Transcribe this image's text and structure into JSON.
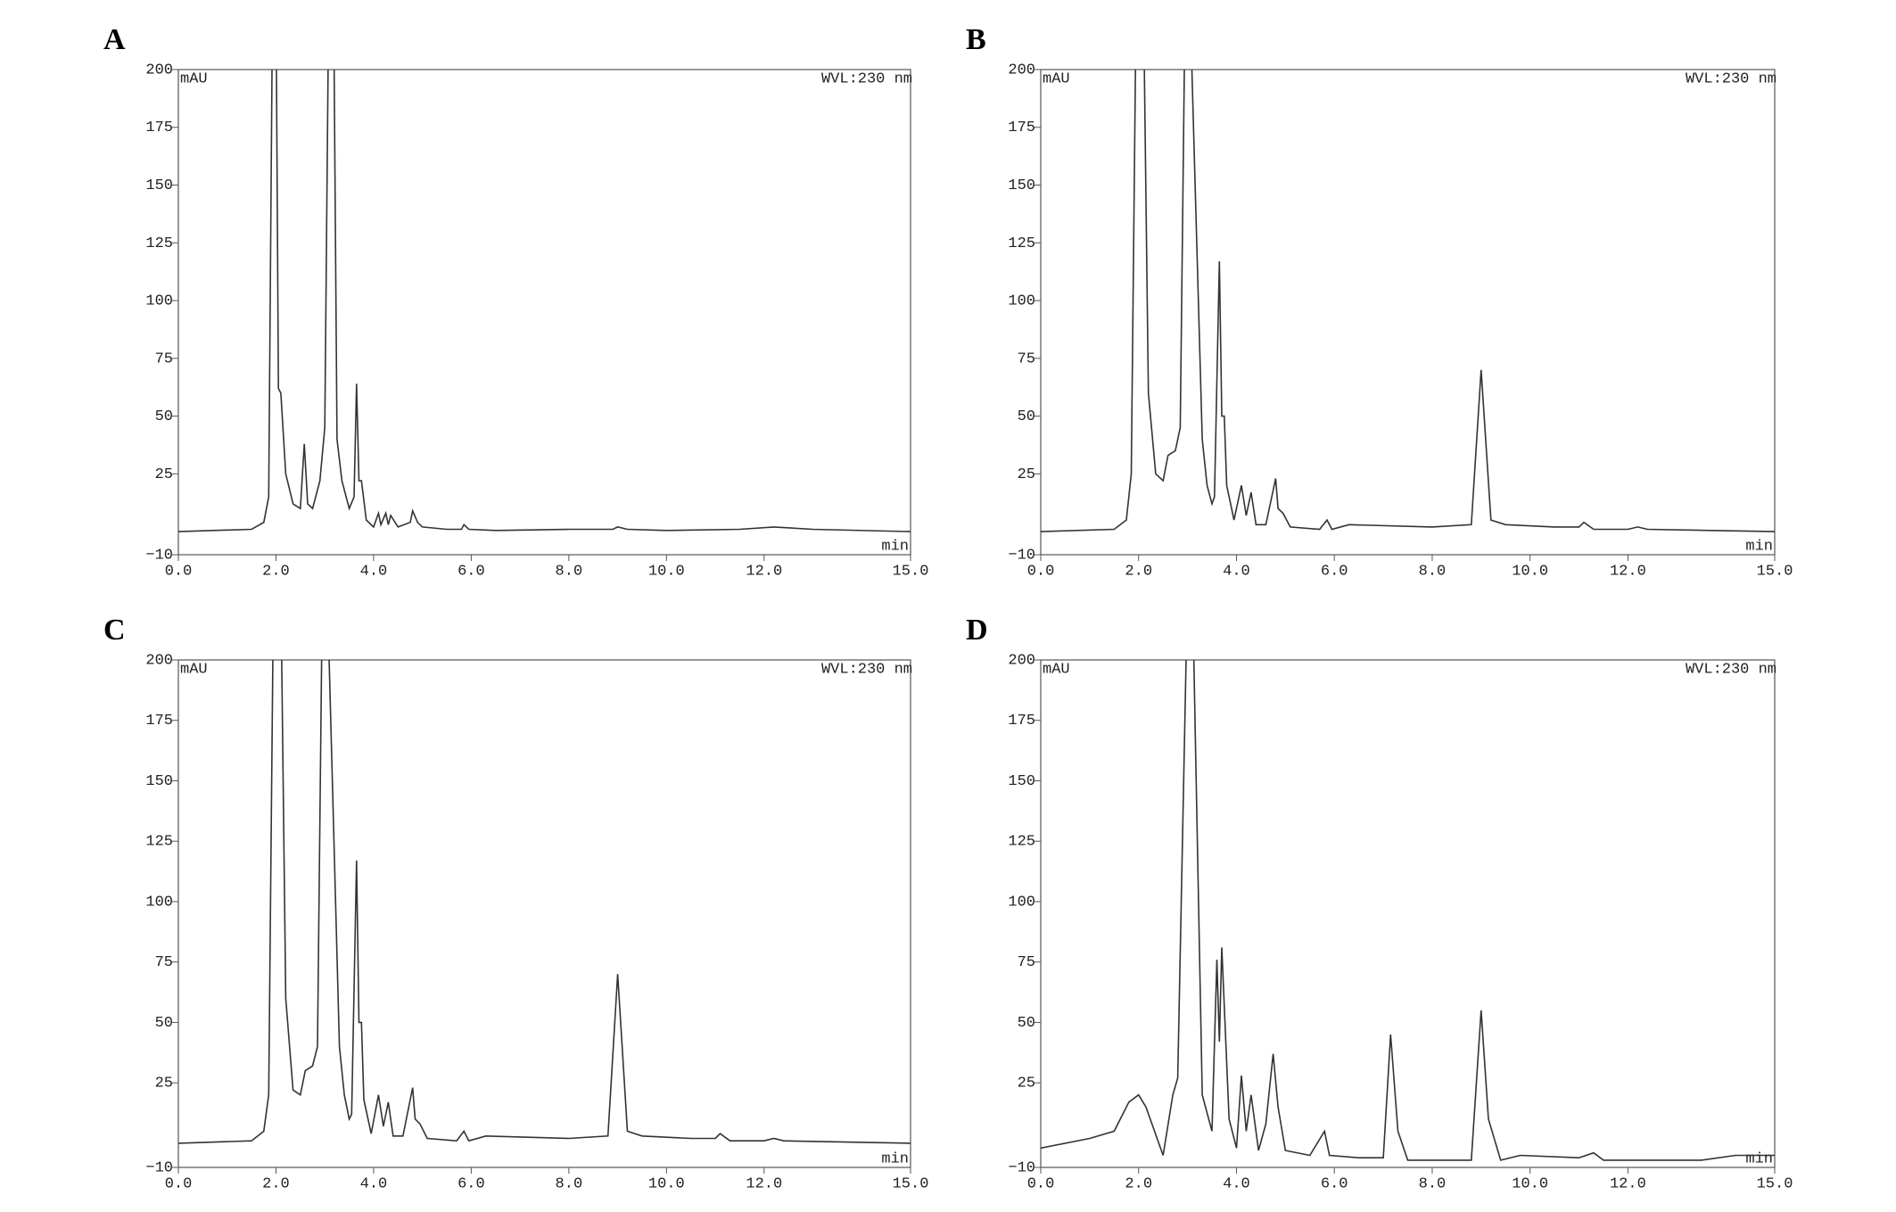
{
  "chart_data": [
    {
      "type": "line",
      "panel_label": "A",
      "y_label": "mAU",
      "annotation": "WVL:230 nm",
      "x_label": "min",
      "xlim": [
        0,
        15
      ],
      "ylim": [
        -10,
        200
      ],
      "xticks": [
        {
          "value": 0,
          "label": "0.0"
        },
        {
          "value": 2,
          "label": "2.0"
        },
        {
          "value": 4,
          "label": "4.0"
        },
        {
          "value": 6,
          "label": "6.0"
        },
        {
          "value": 8,
          "label": "8.0"
        },
        {
          "value": 10,
          "label": "10.0"
        },
        {
          "value": 12,
          "label": "12.0"
        },
        {
          "value": 15,
          "label": "15.0"
        }
      ],
      "yticks": [
        {
          "value": -10,
          "label": "−10"
        },
        25,
        50,
        75,
        100,
        125,
        150,
        175,
        200
      ],
      "x": [
        0,
        1.5,
        1.75,
        1.85,
        1.93,
        2.0,
        2.05,
        2.1,
        2.2,
        2.35,
        2.5,
        2.58,
        2.65,
        2.75,
        2.9,
        3.0,
        3.08,
        3.18,
        3.25,
        3.35,
        3.5,
        3.6,
        3.65,
        3.7,
        3.75,
        3.85,
        4.0,
        4.1,
        4.15,
        4.25,
        4.3,
        4.35,
        4.5,
        4.75,
        4.8,
        4.9,
        5.0,
        5.5,
        5.8,
        5.85,
        5.95,
        6.5,
        8.0,
        8.9,
        9.0,
        9.2,
        10.0,
        11.5,
        12.2,
        13.0,
        15.0
      ],
      "series": [
        {
          "color": "#333333",
          "values": [
            0,
            1,
            4,
            15,
            230,
            230,
            62,
            60,
            25,
            12,
            10,
            38,
            12,
            10,
            22,
            45,
            230,
            230,
            40,
            22,
            10,
            15,
            64,
            22,
            22,
            5,
            2,
            8,
            3,
            8,
            3,
            7,
            2,
            4,
            9,
            4,
            2,
            1,
            1,
            3,
            1,
            0.5,
            1,
            1,
            2,
            1,
            0.5,
            1,
            2,
            1,
            0
          ]
        }
      ]
    },
    {
      "type": "line",
      "panel_label": "B",
      "y_label": "mAU",
      "annotation": "WVL:230 nm",
      "x_label": "min",
      "xlim": [
        0,
        15
      ],
      "ylim": [
        -10,
        200
      ],
      "xticks": [
        {
          "value": 0,
          "label": "0.0"
        },
        {
          "value": 2,
          "label": "2.0"
        },
        {
          "value": 4,
          "label": "4.0"
        },
        {
          "value": 6,
          "label": "6.0"
        },
        {
          "value": 8,
          "label": "8.0"
        },
        {
          "value": 10,
          "label": "10.0"
        },
        {
          "value": 12,
          "label": "12.0"
        },
        {
          "value": 15,
          "label": "15.0"
        }
      ],
      "yticks": [
        {
          "value": -10,
          "label": "−10"
        },
        25,
        50,
        75,
        100,
        125,
        150,
        175,
        200
      ],
      "x": [
        0,
        1.5,
        1.75,
        1.85,
        1.95,
        2.1,
        2.2,
        2.35,
        2.5,
        2.6,
        2.75,
        2.85,
        2.95,
        3.05,
        3.3,
        3.4,
        3.5,
        3.55,
        3.65,
        3.7,
        3.75,
        3.8,
        3.95,
        4.1,
        4.2,
        4.3,
        4.4,
        4.6,
        4.8,
        4.85,
        4.95,
        5.1,
        5.7,
        5.85,
        5.95,
        6.3,
        8.0,
        8.8,
        9.0,
        9.2,
        9.5,
        10.5,
        11.0,
        11.1,
        11.3,
        12.0,
        12.2,
        12.4,
        15.0
      ],
      "series": [
        {
          "color": "#333333",
          "values": [
            0,
            1,
            5,
            25,
            230,
            230,
            60,
            25,
            22,
            33,
            35,
            45,
            230,
            230,
            40,
            20,
            12,
            15,
            117,
            50,
            50,
            20,
            5,
            20,
            7,
            17,
            3,
            3,
            23,
            10,
            8,
            2,
            1,
            5,
            1,
            3,
            2,
            3,
            70,
            5,
            3,
            2,
            2,
            4,
            1,
            1,
            2,
            1,
            0
          ]
        }
      ]
    },
    {
      "type": "line",
      "panel_label": "C",
      "y_label": "mAU",
      "annotation": "WVL:230 nm",
      "x_label": "min",
      "xlim": [
        0,
        15
      ],
      "ylim": [
        -10,
        200
      ],
      "xticks": [
        {
          "value": 0,
          "label": "0.0"
        },
        {
          "value": 2,
          "label": "2.0"
        },
        {
          "value": 4,
          "label": "4.0"
        },
        {
          "value": 6,
          "label": "6.0"
        },
        {
          "value": 8,
          "label": "8.0"
        },
        {
          "value": 10,
          "label": "10.0"
        },
        {
          "value": 12,
          "label": "12.0"
        },
        {
          "value": 15,
          "label": "15.0"
        }
      ],
      "yticks": [
        {
          "value": -10,
          "label": "−10"
        },
        25,
        50,
        75,
        100,
        125,
        150,
        175,
        200
      ],
      "x": [
        0,
        1.5,
        1.75,
        1.85,
        1.95,
        2.1,
        2.2,
        2.35,
        2.5,
        2.6,
        2.75,
        2.85,
        2.95,
        3.05,
        3.3,
        3.4,
        3.5,
        3.55,
        3.65,
        3.7,
        3.75,
        3.8,
        3.95,
        4.1,
        4.2,
        4.3,
        4.4,
        4.6,
        4.8,
        4.85,
        4.95,
        5.1,
        5.7,
        5.85,
        5.95,
        6.3,
        8.0,
        8.8,
        9.0,
        9.2,
        9.5,
        10.5,
        11.0,
        11.1,
        11.3,
        12.0,
        12.2,
        12.4,
        15.0
      ],
      "series": [
        {
          "color": "#333333",
          "values": [
            0,
            1,
            5,
            20,
            230,
            230,
            60,
            22,
            20,
            30,
            32,
            40,
            230,
            230,
            40,
            20,
            10,
            12,
            117,
            50,
            50,
            18,
            4,
            20,
            7,
            17,
            3,
            3,
            23,
            10,
            8,
            2,
            1,
            5,
            1,
            3,
            2,
            3,
            70,
            5,
            3,
            2,
            2,
            4,
            1,
            1,
            2,
            1,
            0
          ]
        }
      ]
    },
    {
      "type": "line",
      "panel_label": "D",
      "y_label": "mAU",
      "annotation": "WVL:230 nm",
      "x_label": "min",
      "xlim": [
        0,
        15
      ],
      "ylim": [
        -10,
        200
      ],
      "xticks": [
        {
          "value": 0,
          "label": "0.0"
        },
        {
          "value": 2,
          "label": "2.0"
        },
        {
          "value": 4,
          "label": "4.0"
        },
        {
          "value": 6,
          "label": "6.0"
        },
        {
          "value": 8,
          "label": "8.0"
        },
        {
          "value": 10,
          "label": "10.0"
        },
        {
          "value": 12,
          "label": "12.0"
        },
        {
          "value": 15,
          "label": "15.0"
        }
      ],
      "yticks": [
        {
          "value": -10,
          "label": "−10"
        },
        25,
        50,
        75,
        100,
        125,
        150,
        175,
        200
      ],
      "x": [
        0,
        1.0,
        1.5,
        1.8,
        2.0,
        2.15,
        2.5,
        2.7,
        2.8,
        3.0,
        3.1,
        3.3,
        3.5,
        3.6,
        3.65,
        3.7,
        3.85,
        4.0,
        4.1,
        4.2,
        4.3,
        4.45,
        4.6,
        4.75,
        4.85,
        5.0,
        5.5,
        5.8,
        5.9,
        6.5,
        7.0,
        7.15,
        7.3,
        7.5,
        8.8,
        9.0,
        9.15,
        9.4,
        9.8,
        11.0,
        11.3,
        11.5,
        13.5,
        14.2,
        15.0
      ],
      "series": [
        {
          "color": "#333333",
          "values": [
            -2,
            2,
            5,
            17,
            20,
            15,
            -5,
            20,
            27,
            230,
            230,
            20,
            5,
            76,
            42,
            81,
            10,
            -2,
            28,
            5,
            20,
            -3,
            8,
            37,
            15,
            -3,
            -5,
            5,
            -5,
            -6,
            -6,
            45,
            5,
            -7,
            -7,
            55,
            10,
            -7,
            -5,
            -6,
            -4,
            -7,
            -7,
            -5,
            -5
          ]
        }
      ]
    }
  ]
}
